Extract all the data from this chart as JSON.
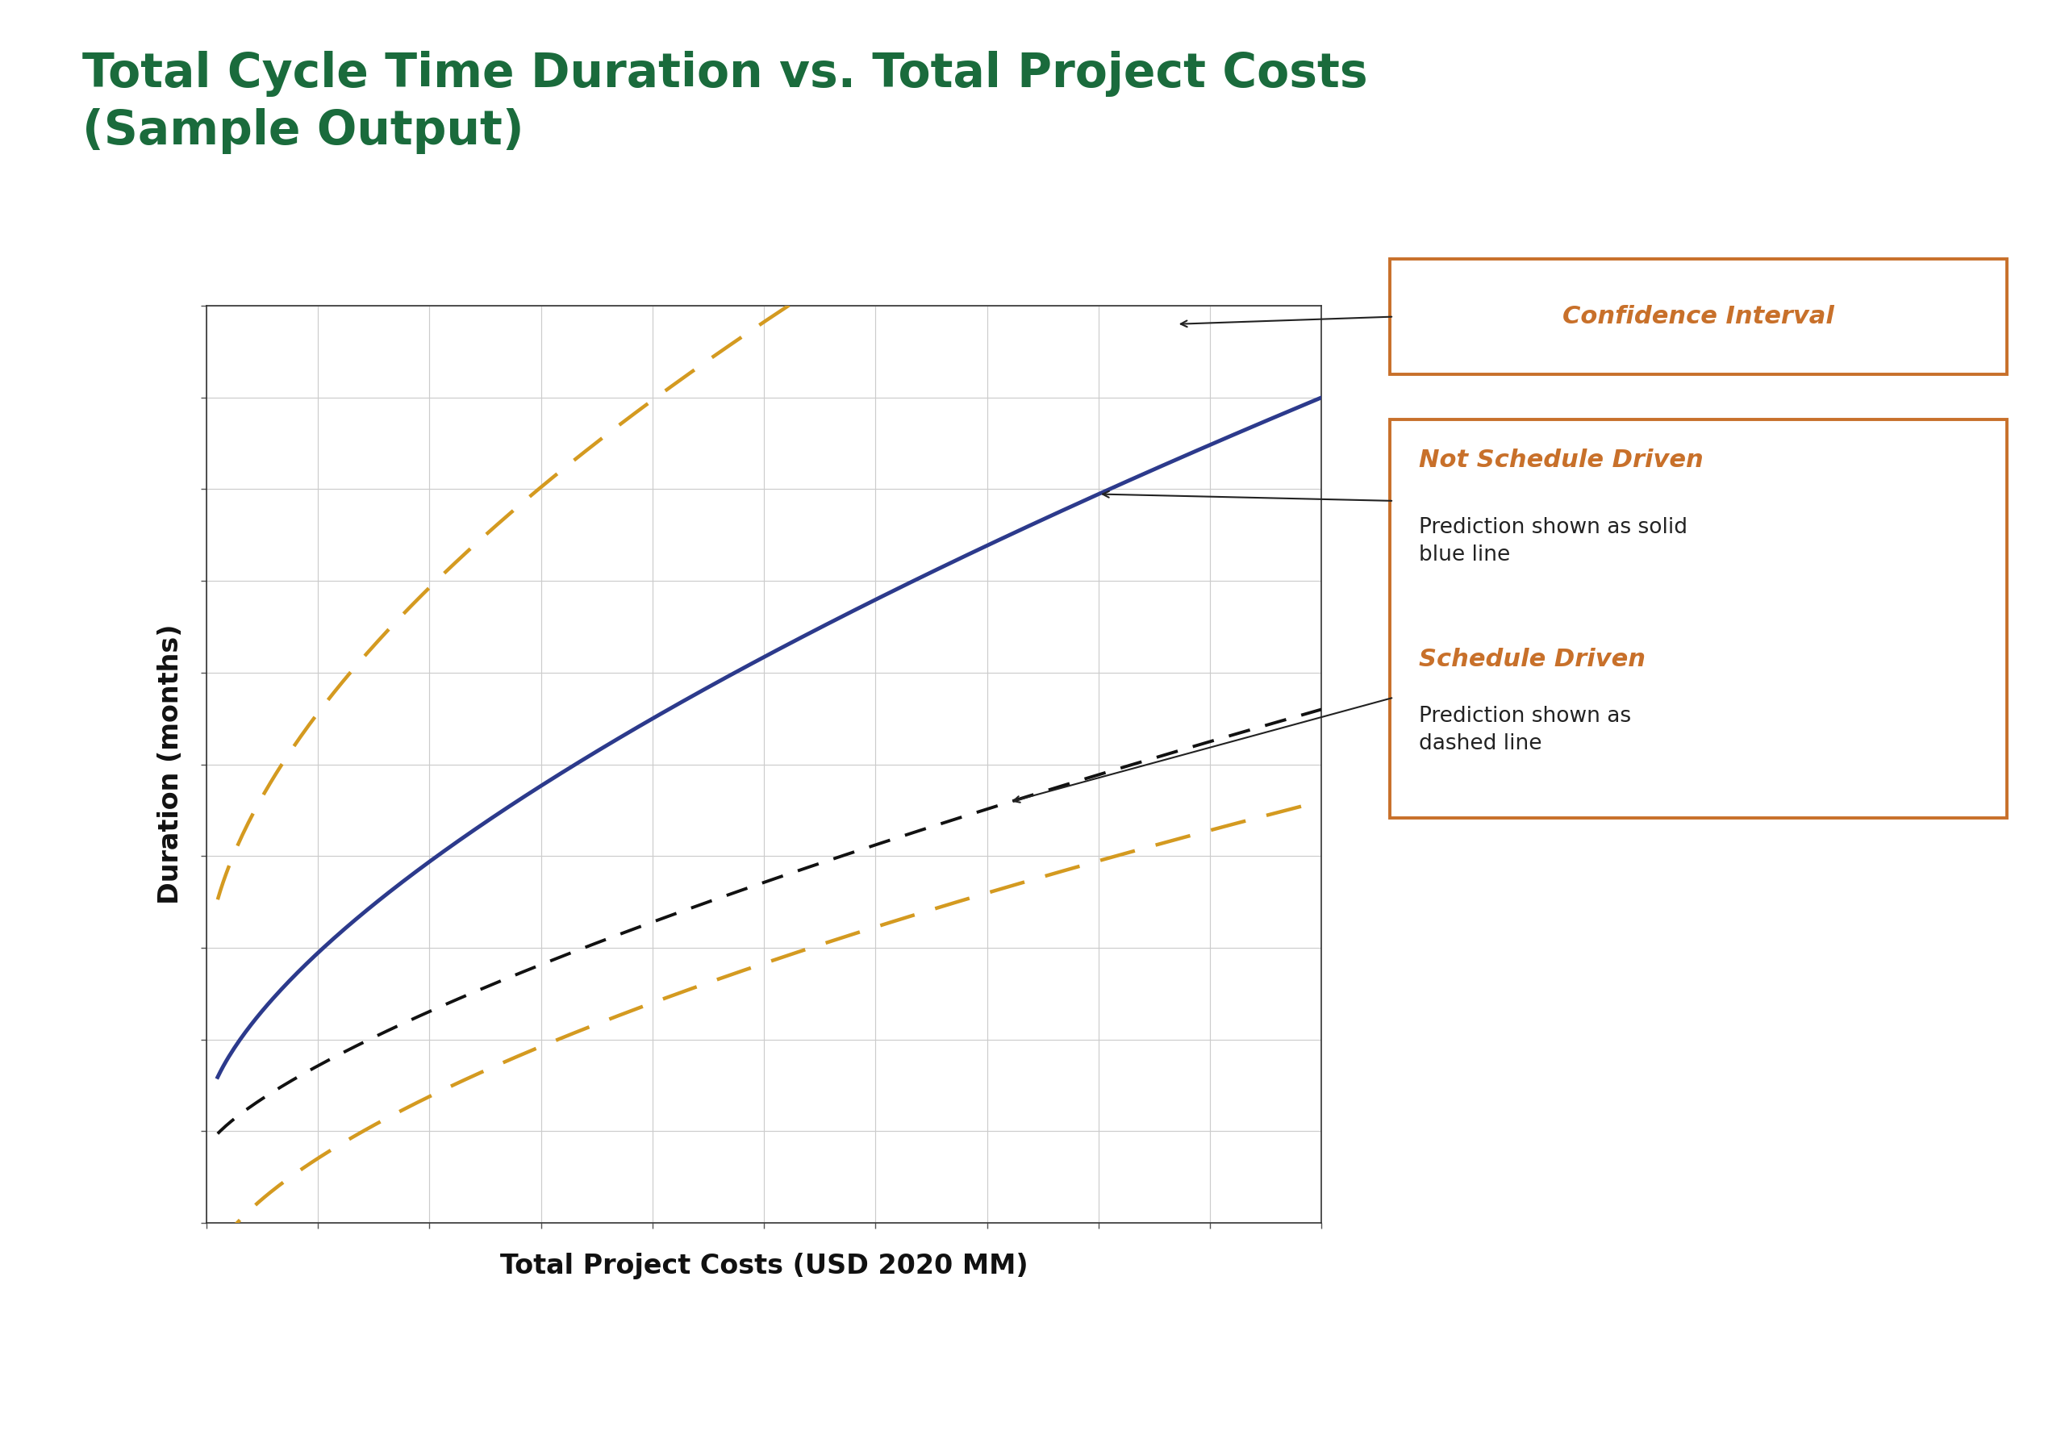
{
  "title_line1": "Total Cycle Time Duration vs. Total Project Costs",
  "title_line2": "(Sample Output)",
  "title_color": "#1a6b3c",
  "xlabel": "Total Project Costs (USD 2020 MM)",
  "ylabel": "Duration (months)",
  "background_color": "#ffffff",
  "plot_bg_color": "#ffffff",
  "grid_color": "#cccccc",
  "top_bar_color": "#2d7a4f",
  "bottom_bar_color": "#c8702a",
  "blue_line_color": "#2c3a8c",
  "dashed_black_color": "#111111",
  "gold_dashed_color": "#d49a20",
  "annotation_box_color": "#c8702a",
  "annotation_italic_color": "#c8702a",
  "confidence_label": "Confidence Interval",
  "not_sched_label": "Not Schedule Driven",
  "not_sched_sub": "Prediction shown as solid\nblue line",
  "sched_label": "Schedule Driven",
  "sched_sub": "Prediction shown as\ndashed line",
  "title_fontsize": 42,
  "label_fontsize": 24,
  "annotation_title_fontsize": 22,
  "annotation_sub_fontsize": 19
}
